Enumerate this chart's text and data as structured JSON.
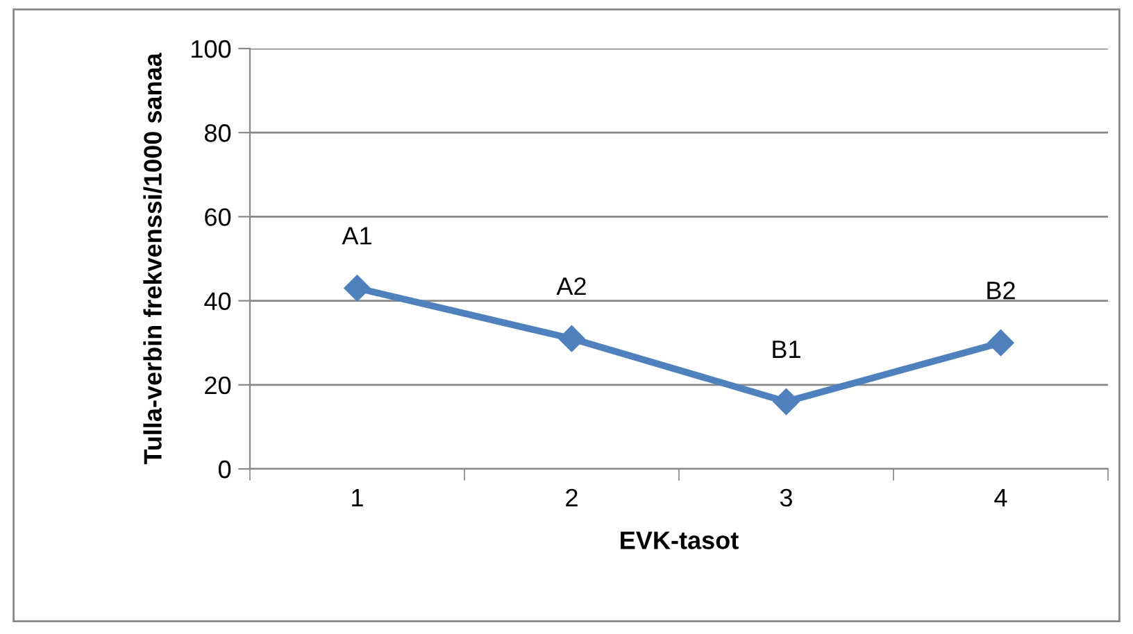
{
  "chart_data": {
    "type": "line",
    "xlabel": "EVK-tasot",
    "ylabel": "Tulla-verbin frekvenssi/1000 sanaa",
    "categories": [
      "1",
      "2",
      "3",
      "4"
    ],
    "series": [
      {
        "color": "#4f81bd",
        "values": [
          43,
          31,
          16,
          30
        ]
      }
    ],
    "ylim": [
      0,
      100
    ],
    "yticks": [
      0,
      20,
      40,
      60,
      80,
      100
    ],
    "grid": "y",
    "legend": false,
    "marker": "diamond",
    "line_style": "solid",
    "annotations": [
      {
        "text": "A1",
        "x": "1",
        "y": 43
      },
      {
        "text": "A2",
        "x": "2",
        "y": 31
      },
      {
        "text": "B1",
        "x": "3",
        "y": 16
      },
      {
        "text": "B2",
        "x": "4",
        "y": 30
      }
    ]
  }
}
